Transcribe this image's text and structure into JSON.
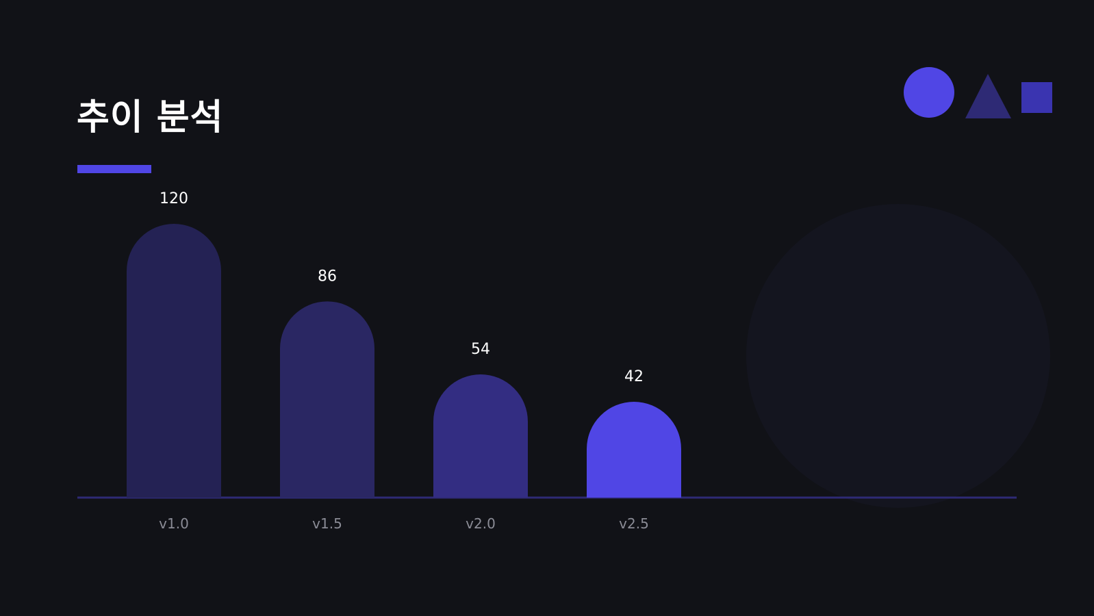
{
  "slide": {
    "title": "추이 분석"
  },
  "colors": {
    "background": "#111217",
    "accent": "#5046e5",
    "bar_colors": [
      "#242254",
      "#2a2763",
      "#332d82",
      "#5046e5"
    ],
    "baseline": "#2e2a75",
    "bg_circle": "#14151f",
    "value_label": "#ffffff",
    "category_label": "#8b8c96",
    "shape_circle": "#5046e5",
    "shape_triangle": "#2e2a75",
    "shape_square": "#3a34b0"
  },
  "decor": {
    "shape_icons": [
      "circle-icon",
      "triangle-icon",
      "square-icon"
    ]
  },
  "chart_data": {
    "type": "bar",
    "categories": [
      "v1.0",
      "v1.5",
      "v2.0",
      "v2.5"
    ],
    "values": [
      120,
      86,
      54,
      42
    ],
    "value_labels": [
      "120",
      "86",
      "54",
      "42"
    ],
    "ylim": [
      0,
      120
    ],
    "bar_style": "rounded-top",
    "grid": false,
    "highlight_index": 3
  }
}
